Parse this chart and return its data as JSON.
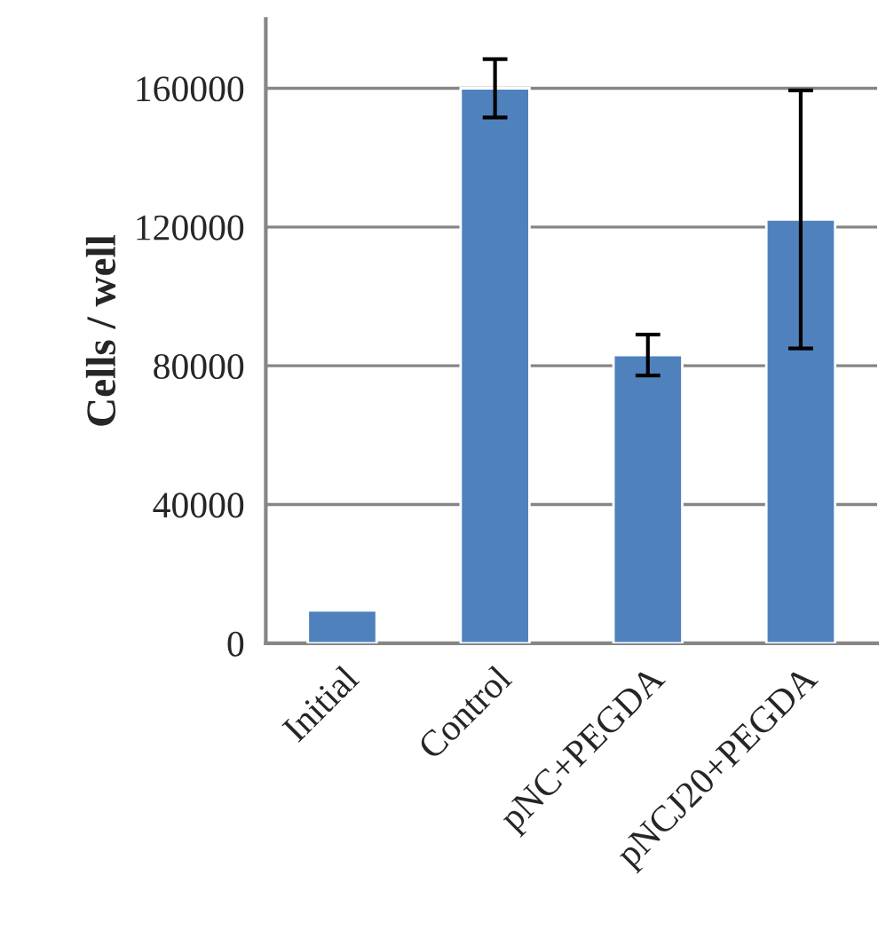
{
  "chart_data": {
    "type": "bar",
    "ylabel": "Cells / well",
    "categories": [
      "Initial",
      "Control",
      "pNC+PEGDA",
      "pNCJ20+PEGDA"
    ],
    "values": [
      9500,
      160000,
      83100,
      122200
    ],
    "errors": [
      null,
      8400,
      5900,
      37200
    ],
    "color": "#4f81bd",
    "ylim": [
      0,
      180000
    ],
    "yticks": [
      0,
      40000,
      80000,
      120000,
      160000
    ],
    "grid": "y",
    "legend": false
  }
}
